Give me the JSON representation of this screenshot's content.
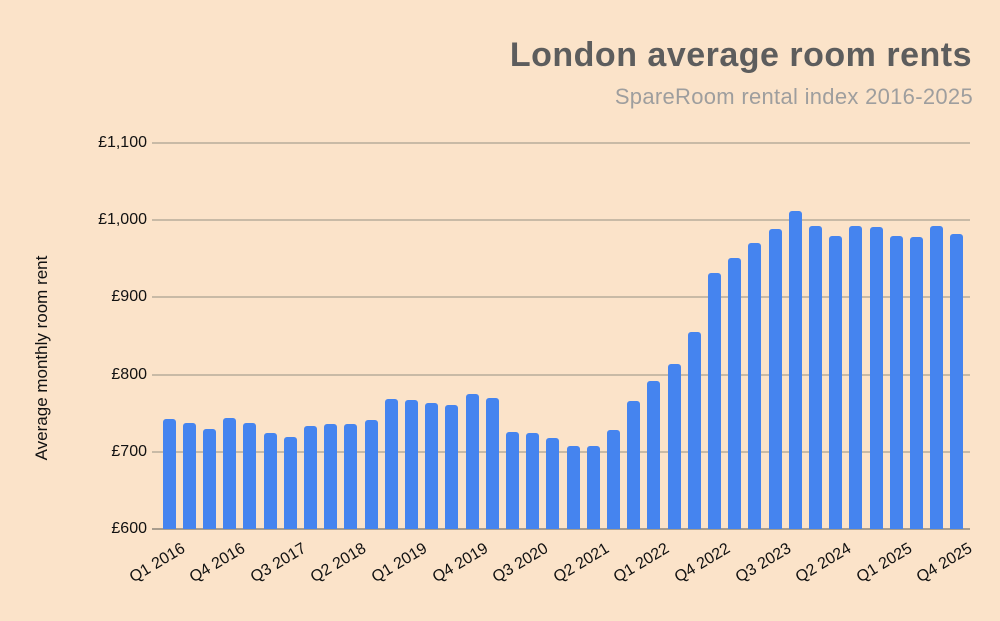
{
  "chart": {
    "title": "London average room rents",
    "subtitle": "SpareRoom rental index 2016-2025",
    "y_axis_title": "Average monthly room rent",
    "colors": {
      "background": "#fbe3c9",
      "bar": "#4584ef",
      "gridline": "#c8baa6",
      "baseline": "#a89d8e",
      "title_text": "#5d5d5d",
      "subtitle_text": "#9e9e9e",
      "axis_text": "#111111"
    }
  },
  "chart_data": {
    "type": "bar",
    "title": "London average room rents",
    "subtitle": "SpareRoom rental index 2016-2025",
    "xlabel": "",
    "ylabel": "Average monthly room rent",
    "ylim": [
      600,
      1100
    ],
    "grid": true,
    "legend": false,
    "currency": "£",
    "y_ticks": [
      600,
      700,
      800,
      900,
      1000,
      1100
    ],
    "y_tick_labels": [
      "£600",
      "£700",
      "£800",
      "£900",
      "£1,000",
      "£1,100"
    ],
    "x_tick_label_indices": [
      0,
      3,
      6,
      9,
      12,
      15,
      18,
      21,
      24,
      27,
      30,
      33,
      36,
      39
    ],
    "x_tick_labels": [
      "Q1 2016",
      "Q4 2016",
      "Q3 2017",
      "Q2 2018",
      "Q1 2019",
      "Q4 2019",
      "Q3 2020",
      "Q2 2021",
      "Q1 2022",
      "Q4 2022",
      "Q3 2023",
      "Q2 2024",
      "Q1 2025",
      "Q4 2025"
    ],
    "categories": [
      "Q1 2016",
      "Q2 2016",
      "Q3 2016",
      "Q4 2016",
      "Q1 2017",
      "Q2 2017",
      "Q3 2017",
      "Q4 2017",
      "Q1 2018",
      "Q2 2018",
      "Q3 2018",
      "Q4 2018",
      "Q1 2019",
      "Q2 2019",
      "Q3 2019",
      "Q4 2019",
      "Q1 2020",
      "Q2 2020",
      "Q3 2020",
      "Q4 2020",
      "Q1 2021",
      "Q2 2021",
      "Q3 2021",
      "Q4 2021",
      "Q1 2022",
      "Q2 2022",
      "Q3 2022",
      "Q4 2022",
      "Q1 2023",
      "Q2 2023",
      "Q3 2023",
      "Q4 2023",
      "Q1 2024",
      "Q2 2024",
      "Q3 2024",
      "Q4 2024",
      "Q1 2025",
      "Q2 2025",
      "Q3 2025",
      "Q4 2025"
    ],
    "values": [
      743,
      737,
      730,
      744,
      737,
      725,
      719,
      733,
      736,
      736,
      741,
      768,
      767,
      763,
      761,
      775,
      770,
      726,
      724,
      718,
      708,
      707,
      728,
      766,
      792,
      814,
      855,
      931,
      951,
      971,
      988,
      1012,
      992,
      980,
      992,
      991,
      980,
      978,
      993,
      982
    ]
  }
}
